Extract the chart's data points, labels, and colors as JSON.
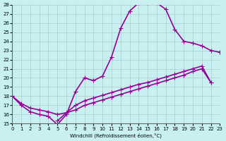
{
  "xlabel": "Windchill (Refroidissement éolien,°C)",
  "background_color": "#c8f0f0",
  "line_color": "#990099",
  "marker": "+",
  "markersize": 5,
  "linewidth": 1.2,
  "xlim": [
    0,
    23
  ],
  "ylim": [
    15,
    28
  ],
  "xticks": [
    0,
    1,
    2,
    3,
    4,
    5,
    6,
    7,
    8,
    9,
    10,
    11,
    12,
    13,
    14,
    15,
    16,
    17,
    18,
    19,
    20,
    21,
    22,
    23
  ],
  "yticks": [
    15,
    16,
    17,
    18,
    19,
    20,
    21,
    22,
    23,
    24,
    25,
    26,
    27,
    28
  ],
  "grid_color": "#aacccc",
  "line1_x": [
    0,
    1,
    2,
    3,
    4,
    5,
    6,
    7,
    8,
    9,
    10,
    11,
    12,
    13,
    14,
    15,
    16,
    17,
    18,
    19,
    20,
    21,
    22,
    23
  ],
  "line1_y": [
    18.0,
    17.0,
    16.3,
    16.0,
    15.8,
    14.9,
    16.0,
    18.5,
    20.0,
    19.7,
    20.2,
    22.3,
    25.4,
    27.3,
    28.2,
    28.2,
    28.2,
    27.5,
    25.3,
    24.0,
    23.8,
    23.5,
    23.0,
    22.8
  ],
  "line2_x": [
    0,
    1,
    2,
    3,
    4,
    5,
    6,
    7,
    8,
    9,
    10,
    11,
    12,
    13,
    14,
    15,
    16,
    17,
    18,
    19,
    20,
    21,
    22
  ],
  "line2_y": [
    18.0,
    17.2,
    16.7,
    16.5,
    16.3,
    16.0,
    16.2,
    16.5,
    17.0,
    17.3,
    17.6,
    17.9,
    18.2,
    18.5,
    18.8,
    19.1,
    19.4,
    19.7,
    20.0,
    20.3,
    20.7,
    21.0,
    19.5
  ],
  "line3_x": [
    5,
    6,
    7,
    8,
    9,
    10,
    11,
    12,
    13,
    14,
    15,
    16,
    17,
    18,
    19,
    20,
    21,
    22
  ],
  "line3_y": [
    15.3,
    16.2,
    17.0,
    17.5,
    17.8,
    18.1,
    18.4,
    18.7,
    19.0,
    19.3,
    19.5,
    19.8,
    20.1,
    20.4,
    20.7,
    21.0,
    21.3,
    19.5
  ]
}
